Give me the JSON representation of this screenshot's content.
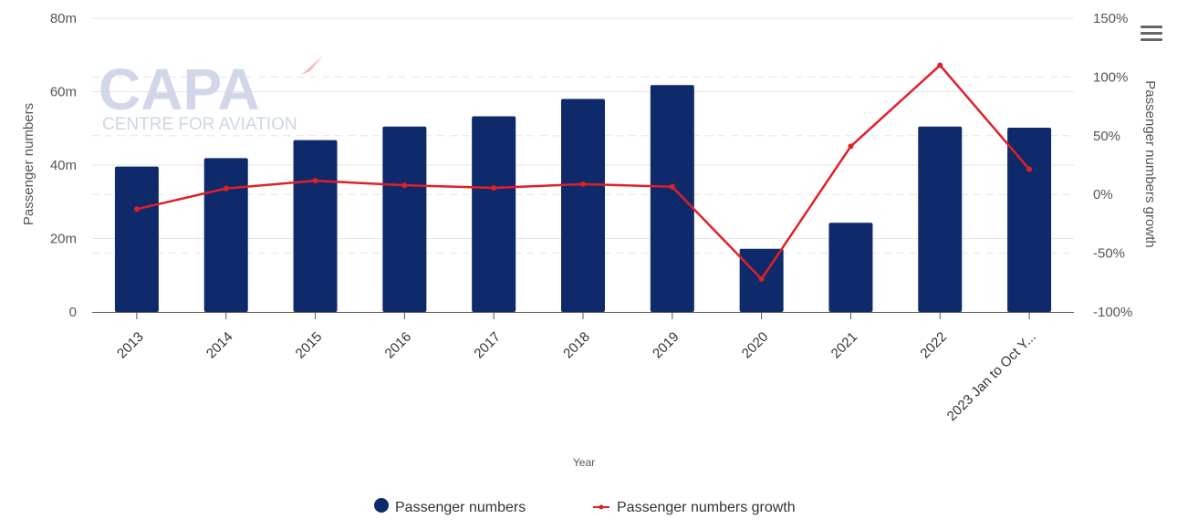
{
  "chart_data": {
    "type": "bar",
    "categories": [
      "2013",
      "2014",
      "2015",
      "2016",
      "2017",
      "2018",
      "2019",
      "2020",
      "2021",
      "2022",
      "2023 Jan to Oct Y..."
    ],
    "series": [
      {
        "name": "Passenger numbers",
        "type": "bar",
        "axis": "left",
        "color": "#0f2a6b",
        "values": [
          39.6,
          41.9,
          46.8,
          50.5,
          53.3,
          58.0,
          61.8,
          17.2,
          24.3,
          50.5,
          50.2
        ]
      },
      {
        "name": "Passenger numbers growth",
        "type": "line",
        "axis": "right",
        "color": "#e21f26",
        "values": [
          -12.5,
          5.1,
          11.7,
          7.8,
          5.6,
          8.8,
          6.6,
          -72.0,
          41.0,
          110.0,
          21.5
        ]
      }
    ],
    "y_left": {
      "label": "Passenger numbers",
      "range": [
        0,
        80
      ],
      "ticks": [
        0,
        20,
        40,
        60,
        80
      ],
      "tick_labels": [
        "0",
        "20m",
        "40m",
        "60m",
        "80m"
      ]
    },
    "y_right": {
      "label": "Passenger numbers growth",
      "range": [
        -100,
        150
      ],
      "ticks": [
        -100,
        -50,
        0,
        50,
        100,
        150
      ],
      "tick_labels": [
        "-100%",
        "-50%",
        "0%",
        "50%",
        "100%",
        "150%"
      ]
    },
    "xlabel": "Year",
    "grid": true,
    "legend_position": "bottom-center"
  },
  "watermark": {
    "logo_text": "CAPA",
    "tagline": "CENTRE FOR AVIATION"
  },
  "menu_icon": "hamburger-menu-icon"
}
